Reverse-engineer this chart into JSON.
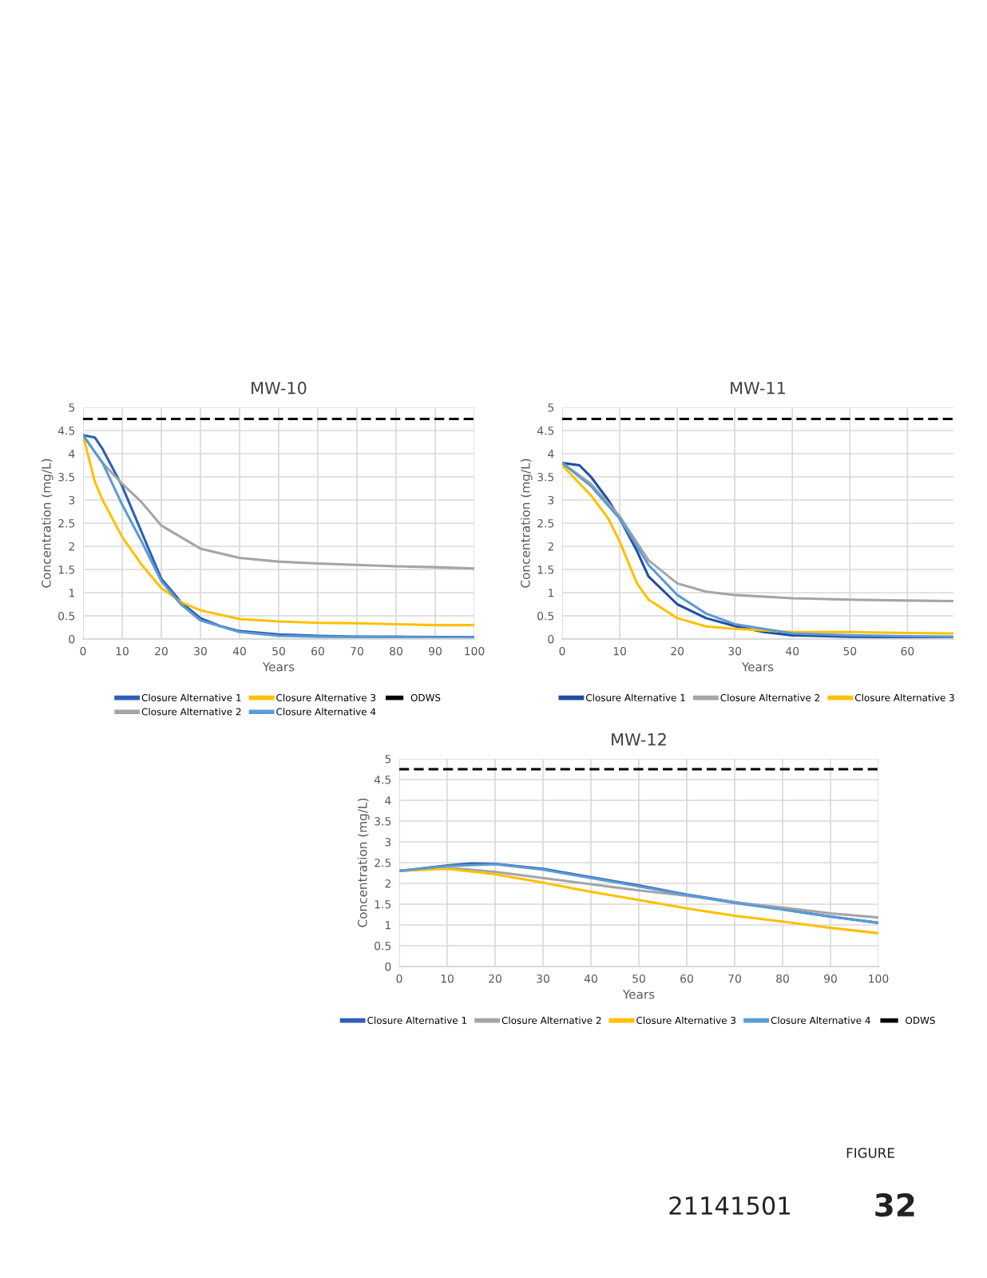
{
  "chart_data": [
    {
      "type": "line",
      "title": "MW-10",
      "xlabel": "Years",
      "ylabel": "Concentration (mg/L)",
      "xlim": [
        0,
        100
      ],
      "ylim": [
        0,
        5
      ],
      "xticks": [
        0,
        10,
        20,
        30,
        40,
        50,
        60,
        70,
        80,
        90,
        100
      ],
      "yticks": [
        0,
        0.5,
        1,
        1.5,
        2,
        2.5,
        3,
        3.5,
        4,
        4.5,
        5
      ],
      "grid": true,
      "legend": "bottom",
      "marker": "none",
      "series": [
        {
          "name": "Closure Alternative 1",
          "color": "#2e5fb8",
          "x": [
            0,
            3,
            5,
            10,
            15,
            20,
            25,
            30,
            35,
            40,
            50,
            60,
            70,
            80,
            100
          ],
          "values": [
            4.4,
            4.35,
            4.1,
            3.3,
            2.3,
            1.3,
            0.8,
            0.45,
            0.28,
            0.17,
            0.1,
            0.07,
            0.05,
            0.05,
            0.04
          ]
        },
        {
          "name": "Closure Alternative 2",
          "color": "#a5a5a5",
          "x": [
            0,
            5,
            10,
            15,
            20,
            25,
            30,
            40,
            50,
            60,
            70,
            80,
            90,
            100
          ],
          "values": [
            4.4,
            3.8,
            3.35,
            2.95,
            2.45,
            2.2,
            1.95,
            1.75,
            1.67,
            1.63,
            1.6,
            1.57,
            1.55,
            1.52
          ]
        },
        {
          "name": "Closure Alternative 3",
          "color": "#ffc000",
          "x": [
            0,
            3,
            5,
            10,
            15,
            20,
            25,
            30,
            40,
            50,
            60,
            70,
            80,
            90,
            100
          ],
          "values": [
            4.4,
            3.4,
            3.0,
            2.2,
            1.6,
            1.1,
            0.8,
            0.62,
            0.43,
            0.38,
            0.35,
            0.34,
            0.32,
            0.3,
            0.3
          ]
        },
        {
          "name": "Closure Alternative 4",
          "color": "#5b9bd5",
          "x": [
            0,
            5,
            10,
            15,
            20,
            25,
            30,
            40,
            50,
            60,
            100
          ],
          "values": [
            4.4,
            3.8,
            2.9,
            2.1,
            1.25,
            0.75,
            0.4,
            0.15,
            0.07,
            0.05,
            0.03
          ]
        },
        {
          "name": "ODWS",
          "color": "#000000",
          "line_style": "dashed",
          "x": [
            0,
            100
          ],
          "values": [
            4.75,
            4.75
          ]
        }
      ]
    },
    {
      "type": "line",
      "title": "MW-11",
      "xlabel": "Years",
      "ylabel": "Concentration (mg/L)",
      "xlim": [
        0,
        68
      ],
      "ylim": [
        0,
        5
      ],
      "xticks": [
        0,
        10,
        20,
        30,
        40,
        50,
        60
      ],
      "yticks": [
        0,
        0.5,
        1,
        1.5,
        2,
        2.5,
        3,
        3.5,
        4,
        4.5,
        5
      ],
      "grid": true,
      "legend": "bottom",
      "marker": "none",
      "series": [
        {
          "name": "Closure Alternative 1",
          "color": "#1f4ea3",
          "x": [
            0,
            3,
            5,
            8,
            10,
            13,
            15,
            20,
            25,
            30,
            35,
            40,
            50,
            60,
            68
          ],
          "values": [
            3.8,
            3.75,
            3.5,
            3.0,
            2.6,
            1.9,
            1.35,
            0.75,
            0.45,
            0.28,
            0.15,
            0.08,
            0.05,
            0.04,
            0.04
          ]
        },
        {
          "name": "Closure Alternative 2",
          "color": "#a5a5a5",
          "x": [
            0,
            5,
            10,
            15,
            20,
            25,
            30,
            40,
            50,
            60,
            68
          ],
          "values": [
            3.8,
            3.35,
            2.65,
            1.7,
            1.2,
            1.02,
            0.95,
            0.88,
            0.85,
            0.83,
            0.82
          ]
        },
        {
          "name": "Closure Alternative 3",
          "color": "#ffc000",
          "x": [
            0,
            5,
            8,
            10,
            13,
            15,
            20,
            25,
            30,
            40,
            50,
            60,
            68
          ],
          "values": [
            3.75,
            3.1,
            2.6,
            2.1,
            1.2,
            0.85,
            0.45,
            0.27,
            0.22,
            0.15,
            0.15,
            0.13,
            0.12
          ]
        },
        {
          "color": "#5b9bd5",
          "x": [
            0,
            5,
            10,
            15,
            20,
            25,
            30,
            40,
            50,
            60,
            68
          ],
          "values": [
            3.8,
            3.3,
            2.6,
            1.6,
            0.95,
            0.55,
            0.32,
            0.12,
            0.08,
            0.06,
            0.05
          ]
        },
        {
          "color": "#000000",
          "line_style": "dashed",
          "x": [
            0,
            68
          ],
          "values": [
            4.75,
            4.75
          ]
        }
      ]
    },
    {
      "type": "line",
      "title": "MW-12",
      "xlabel": "Years",
      "ylabel": "Concentration (mg/L)",
      "xlim": [
        0,
        100
      ],
      "ylim": [
        0,
        5
      ],
      "xticks": [
        0,
        10,
        20,
        30,
        40,
        50,
        60,
        70,
        80,
        90,
        100
      ],
      "yticks": [
        0,
        0.5,
        1,
        1.5,
        2,
        2.5,
        3,
        3.5,
        4,
        4.5,
        5
      ],
      "grid": true,
      "legend": "bottom",
      "marker": "none",
      "series": [
        {
          "name": "Closure Alternative 1",
          "color": "#2e5fb8",
          "x": [
            0,
            10,
            15,
            20,
            30,
            40,
            50,
            60,
            70,
            80,
            90,
            100
          ],
          "values": [
            2.3,
            2.43,
            2.48,
            2.47,
            2.35,
            2.15,
            1.95,
            1.73,
            1.55,
            1.38,
            1.2,
            1.05
          ]
        },
        {
          "name": "Closure Alternative 2",
          "color": "#a5a5a5",
          "x": [
            0,
            10,
            20,
            30,
            40,
            50,
            60,
            70,
            80,
            90,
            100
          ],
          "values": [
            2.3,
            2.38,
            2.28,
            2.13,
            1.98,
            1.83,
            1.7,
            1.55,
            1.42,
            1.28,
            1.18
          ]
        },
        {
          "name": "Closure Alternative 3",
          "color": "#ffc000",
          "x": [
            0,
            10,
            20,
            30,
            40,
            50,
            60,
            70,
            80,
            90,
            100
          ],
          "values": [
            2.3,
            2.35,
            2.22,
            2.02,
            1.8,
            1.6,
            1.4,
            1.22,
            1.08,
            0.93,
            0.8
          ]
        },
        {
          "name": "Closure Alternative 4",
          "color": "#5b9bd5",
          "x": [
            0,
            10,
            20,
            30,
            40,
            50,
            60,
            70,
            80,
            90,
            100
          ],
          "values": [
            2.3,
            2.42,
            2.46,
            2.33,
            2.13,
            1.93,
            1.72,
            1.53,
            1.37,
            1.2,
            1.05
          ]
        },
        {
          "name": "ODWS",
          "color": "#000000",
          "line_style": "dashed",
          "x": [
            0,
            100
          ],
          "values": [
            4.75,
            4.75
          ]
        }
      ]
    },
    {
      "type": "other",
      "annotations": [
        "21141501",
        "FIGURE",
        "32"
      ]
    }
  ]
}
